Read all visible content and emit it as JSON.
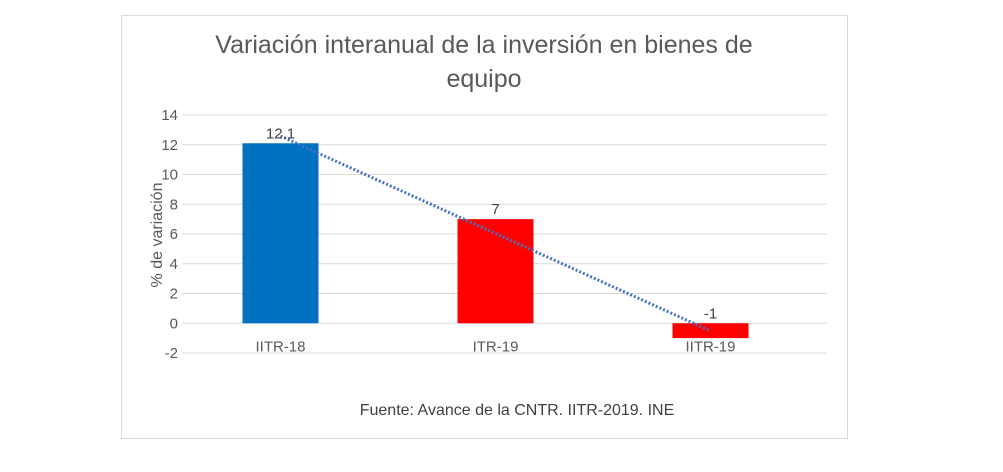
{
  "chart_data": {
    "type": "bar",
    "title_lines": [
      "Variación interanual de la inversión en bienes de",
      "equipo"
    ],
    "xlabel": "",
    "ylabel": "% de variación",
    "categories": [
      "IITR-18",
      "ITR-19",
      "IITR-19"
    ],
    "values": [
      12.1,
      7,
      -1
    ],
    "data_labels": [
      "12.1",
      "7",
      "-1"
    ],
    "bar_colors": [
      "#0070c0",
      "#ff0000",
      "#ff0000"
    ],
    "ylim": [
      -2,
      14
    ],
    "yticks": [
      14,
      12,
      10,
      8,
      6,
      4,
      2,
      0,
      -2
    ],
    "grid": true,
    "trendline": {
      "type": "linear",
      "color": "#4472c4",
      "style": "dotted"
    },
    "source": "Fuente: Avance de la CNTR. IITR-2019. INE"
  }
}
